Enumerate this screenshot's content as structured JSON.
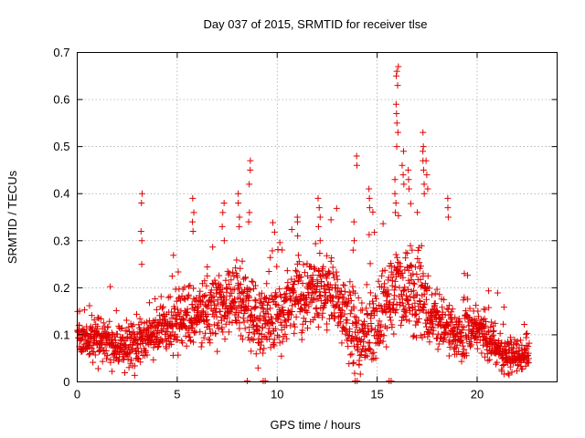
{
  "chart_data": {
    "type": "scatter",
    "title": "Day 037 of 2015, SRMTID for receiver tlse",
    "xlabel": "GPS time / hours",
    "ylabel": "SRMTID / TECUs",
    "xlim": [
      0,
      24
    ],
    "ylim": [
      0,
      0.7
    ],
    "xticks": [
      "0",
      "5",
      "10",
      "15",
      "20"
    ],
    "yticks": [
      "0",
      "0.1",
      "0.2",
      "0.3",
      "0.4",
      "0.5",
      "0.6",
      "0.7"
    ],
    "grid": true,
    "marker": "+",
    "color": "#e00000",
    "trend": [
      [
        0.0,
        0.1
      ],
      [
        1.0,
        0.09
      ],
      [
        2.0,
        0.07
      ],
      [
        3.0,
        0.08
      ],
      [
        4.0,
        0.11
      ],
      [
        5.0,
        0.13
      ],
      [
        6.0,
        0.14
      ],
      [
        7.0,
        0.16
      ],
      [
        8.0,
        0.18
      ],
      [
        9.0,
        0.12
      ],
      [
        10.0,
        0.14
      ],
      [
        11.0,
        0.17
      ],
      [
        12.0,
        0.2
      ],
      [
        13.0,
        0.17
      ],
      [
        14.0,
        0.1
      ],
      [
        15.0,
        0.13
      ],
      [
        16.0,
        0.2
      ],
      [
        17.0,
        0.18
      ],
      [
        18.0,
        0.12
      ],
      [
        19.0,
        0.1
      ],
      [
        20.0,
        0.12
      ],
      [
        21.0,
        0.07
      ],
      [
        22.0,
        0.05
      ],
      [
        22.6,
        0.06
      ]
    ],
    "spread": [
      [
        0.0,
        0.04
      ],
      [
        3.0,
        0.05
      ],
      [
        5.0,
        0.06
      ],
      [
        8.0,
        0.07
      ],
      [
        10.0,
        0.07
      ],
      [
        12.0,
        0.07
      ],
      [
        14.0,
        0.08
      ],
      [
        16.0,
        0.09
      ],
      [
        18.0,
        0.06
      ],
      [
        20.0,
        0.05
      ],
      [
        22.6,
        0.03
      ]
    ],
    "density_per_hour": 90,
    "highlights": [
      {
        "x": 3.2,
        "values": [
          0.4,
          0.38,
          0.32,
          0.3,
          0.25
        ]
      },
      {
        "x": 5.8,
        "values": [
          0.39,
          0.36,
          0.34,
          0.32
        ]
      },
      {
        "x": 7.3,
        "values": [
          0.38,
          0.36,
          0.33,
          0.3
        ]
      },
      {
        "x": 8.1,
        "values": [
          0.4,
          0.38,
          0.35,
          0.33
        ]
      },
      {
        "x": 8.6,
        "values": [
          0.47,
          0.45,
          0.42,
          0.36,
          0.34
        ]
      },
      {
        "x": 11.0,
        "values": [
          0.35,
          0.34,
          0.31
        ]
      },
      {
        "x": 12.1,
        "values": [
          0.39,
          0.37,
          0.35,
          0.33
        ]
      },
      {
        "x": 13.8,
        "values": [
          0.34,
          0.3,
          0.28
        ]
      },
      {
        "x": 14.0,
        "values": [
          0.48,
          0.46
        ]
      },
      {
        "x": 14.6,
        "values": [
          0.41,
          0.39,
          0.37
        ]
      },
      {
        "x": 15.9,
        "values": [
          0.4,
          0.43,
          0.38,
          0.36
        ]
      },
      {
        "x": 16.0,
        "values": [
          0.67,
          0.66,
          0.65,
          0.63,
          0.59,
          0.57,
          0.55,
          0.53,
          0.5
        ]
      },
      {
        "x": 16.3,
        "values": [
          0.49,
          0.46,
          0.44,
          0.42
        ]
      },
      {
        "x": 16.6,
        "values": [
          0.45,
          0.43,
          0.41
        ]
      },
      {
        "x": 17.3,
        "values": [
          0.53,
          0.5,
          0.49,
          0.47,
          0.45,
          0.42,
          0.4
        ]
      },
      {
        "x": 17.5,
        "values": [
          0.47,
          0.44,
          0.41
        ]
      },
      {
        "x": 18.5,
        "values": [
          0.39,
          0.37,
          0.35
        ]
      }
    ],
    "near_zero_x": [
      8.5,
      9.3,
      9.4,
      13.9,
      14.0,
      15.6,
      15.7
    ]
  }
}
